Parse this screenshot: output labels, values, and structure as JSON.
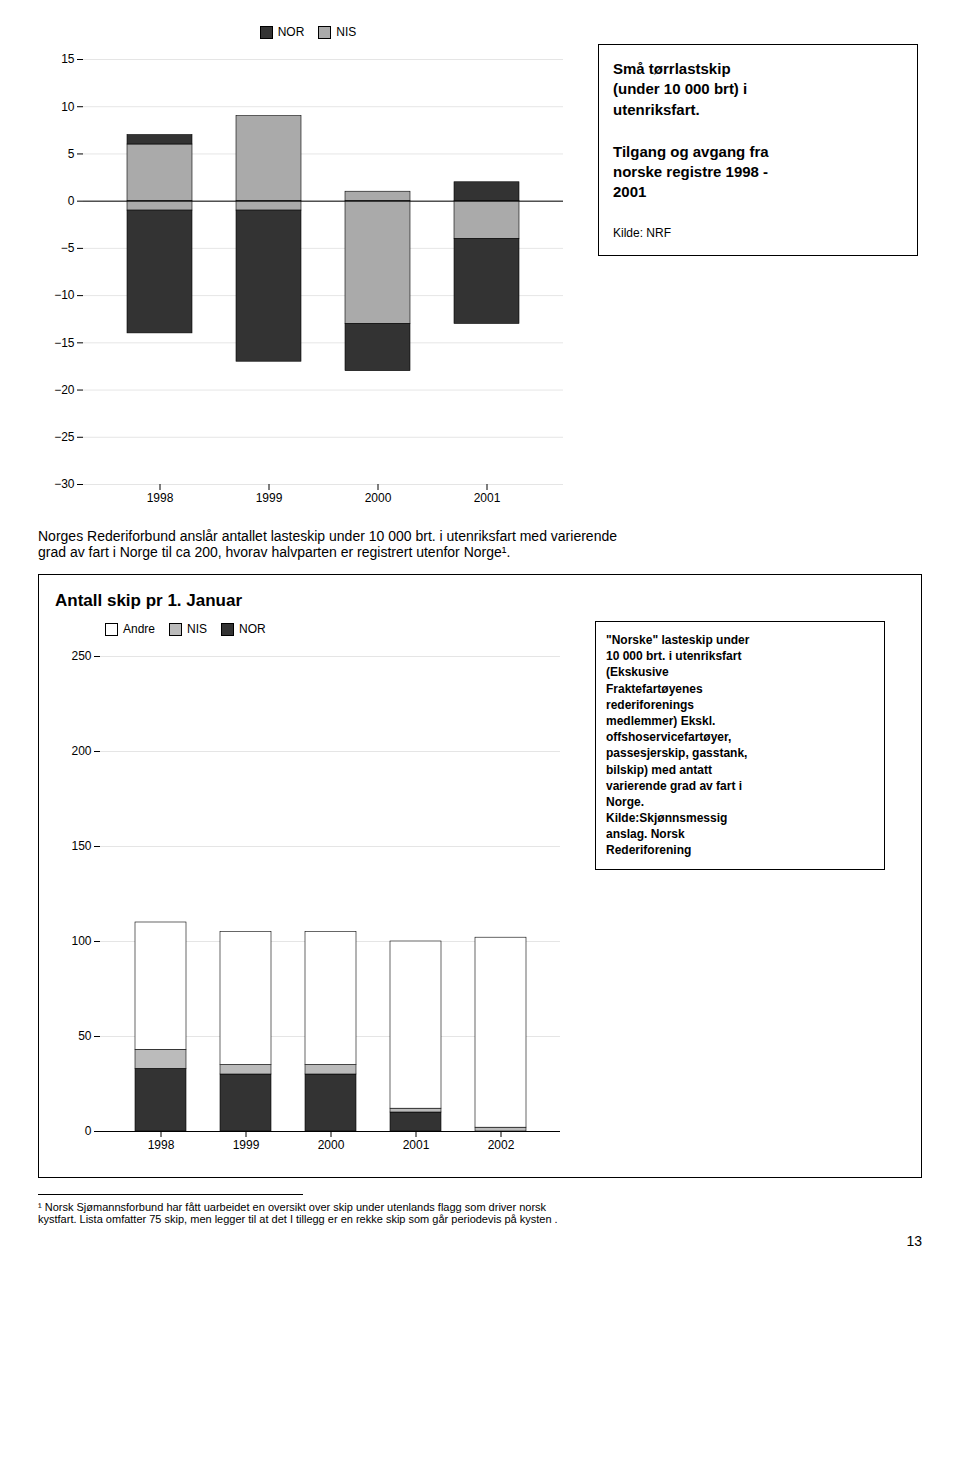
{
  "chart_data": [
    {
      "type": "bar",
      "stacked": true,
      "categories": [
        "1998",
        "1999",
        "2000",
        "2001"
      ],
      "series": [
        {
          "name": "NIS",
          "color": "#aaaaaa",
          "values": [
            6,
            9,
            1,
            0
          ]
        },
        {
          "name": "NIS",
          "color": "#aaaaaa",
          "values": [
            -1,
            -1,
            -13,
            -4
          ]
        },
        {
          "name": "NOR",
          "color": "#333333",
          "values": [
            1,
            0,
            0,
            2
          ]
        },
        {
          "name": "NOR",
          "color": "#333333",
          "values": [
            -13,
            -16,
            -5,
            -9
          ]
        }
      ],
      "ylim": [
        -30,
        15
      ],
      "yticks": [
        -30,
        -25,
        -20,
        -15,
        -10,
        -5,
        0,
        5,
        10,
        15
      ],
      "grid": true,
      "legend": "upper center",
      "annotations": [
        "Små tørrlastskip\n(under 10 000 brt) i\nutenriksfart.",
        "Tilgang og avgang fra\nnorske registre 1998 -\n2001",
        "Kilde: NRF"
      ]
    },
    {
      "type": "bar",
      "stacked": true,
      "title": "Antall skip pr 1. Januar",
      "categories": [
        "1998",
        "1999",
        "2000",
        "2001",
        "2002"
      ],
      "series": [
        {
          "name": "NOR",
          "color": "#333333",
          "values": [
            33,
            30,
            30,
            10,
            0
          ]
        },
        {
          "name": "NIS",
          "color": "#bbbbbb",
          "values": [
            10,
            5,
            5,
            2,
            2
          ]
        },
        {
          "name": "Andre",
          "color": "#ffffff",
          "values": [
            67,
            70,
            70,
            88,
            100
          ]
        }
      ],
      "ylim": [
        0,
        250
      ],
      "yticks": [
        0,
        50,
        100,
        150,
        200,
        250
      ],
      "grid": true,
      "legend": "upper left",
      "annotations": [
        "\"Norske\" lasteskip under\n10 000 brt. i utenriksfart\n(Ekskusive\nFraktefartøyenes\nrederiforenings\nmedlemmer) Ekskl.\noffshoservicefartøyer,\npassesjerskip, gasstank,\nbilskip) med antatt\nvarierende grad av fart i\nNorge.\nKilde:Skjønnsmessig\nanslag. Norsk\nRederiforening"
      ]
    }
  ],
  "annotations": [
    "Norges Rederiforbund anslår antallet lasteskip under 10 000 brt. i utenriksfart med varierende\ngrad av fart i Norge til ca 200, hvorav halvparten er registrert utenfor Norge¹.",
    "¹ Norsk Sjømannsforbund har fått uarbeidet en oversikt over skip under utenlands flagg som driver norsk\nkystfart. Lista omfatter 75 skip, men legger til at det I tillegg er en rekke skip som går periodevis på kysten .",
    "13"
  ]
}
